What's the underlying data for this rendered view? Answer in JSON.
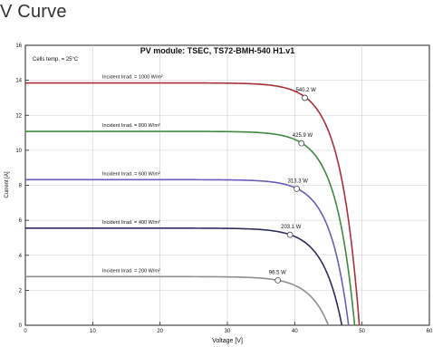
{
  "page": {
    "title": "V Curve"
  },
  "chart_data": {
    "type": "line",
    "title": "PV module:  TSEC,  TS72-BMH-540 H1.v1",
    "annotation": "Cells temp. = 25°C",
    "xlabel": "Voltage [V]",
    "ylabel": "Current [A]",
    "xlim": [
      0,
      60
    ],
    "ylim": [
      0,
      16
    ],
    "x_ticks": [
      0,
      10,
      20,
      30,
      40,
      50,
      60
    ],
    "y_ticks": [
      0,
      2,
      4,
      6,
      8,
      10,
      12,
      14,
      16
    ],
    "colors": {
      "1000": "#a8303a",
      "800": "#3f8a3f",
      "600": "#6a5fb8",
      "400": "#2e2e5e",
      "200": "#8f8f8f"
    },
    "series": [
      {
        "name": "Incident Irrad. = 1000 W/m²",
        "isc": 13.85,
        "voc": 49.6,
        "mpp_v": 41.5,
        "mpp_i": 13.0,
        "mpp_label": "540.2 W",
        "color_key": "1000"
      },
      {
        "name": "Incident Irrad. = 800 W/m²",
        "isc": 11.08,
        "voc": 48.9,
        "mpp_v": 41.0,
        "mpp_i": 10.4,
        "mpp_label": "425.9 W",
        "color_key": "800"
      },
      {
        "name": "Incident Irrad. = 600 W/m²",
        "isc": 8.32,
        "voc": 48.0,
        "mpp_v": 40.3,
        "mpp_i": 7.8,
        "mpp_label": "313.3 W",
        "color_key": "600"
      },
      {
        "name": "Incident Irrad. = 400 W/m²",
        "isc": 5.55,
        "voc": 47.0,
        "mpp_v": 39.3,
        "mpp_i": 5.17,
        "mpp_label": "203.1 W",
        "color_key": "400"
      },
      {
        "name": "Incident Irrad. = 200 W/m²",
        "isc": 2.78,
        "voc": 45.0,
        "mpp_v": 37.5,
        "mpp_i": 2.57,
        "mpp_label": "96.5 W",
        "color_key": "200"
      }
    ]
  }
}
